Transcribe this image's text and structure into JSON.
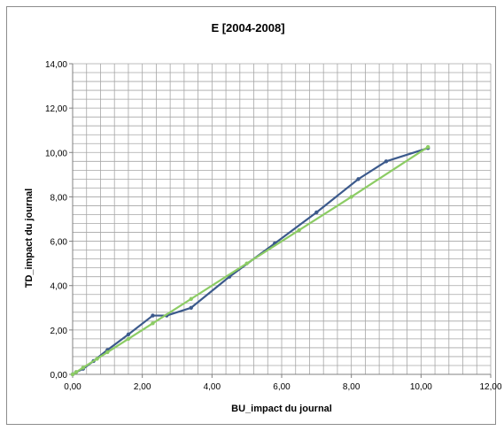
{
  "chart_data": {
    "type": "line",
    "title": "E [2004-2008]",
    "xlabel": "BU_impact du journal",
    "ylabel": "TD_impact du journal",
    "xlim": [
      0,
      12
    ],
    "ylim": [
      0,
      14
    ],
    "x_ticks": [
      "0,00",
      "2,00",
      "4,00",
      "6,00",
      "8,00",
      "10,00",
      "12,00"
    ],
    "y_ticks": [
      "0,00",
      "2,00",
      "4,00",
      "6,00",
      "8,00",
      "10,00",
      "12,00",
      "14,00"
    ],
    "minor_grid_step": 0.4,
    "grid": true,
    "legend": "none",
    "series": [
      {
        "color": "#3c5a8c",
        "marker": "circle",
        "x": [
          0,
          0.1,
          0.3,
          0.6,
          1.0,
          1.6,
          2.3,
          2.7,
          3.4,
          4.5,
          5.8,
          7.0,
          8.2,
          9.0,
          10.2
        ],
        "y": [
          0,
          0.1,
          0.25,
          0.6,
          1.1,
          1.8,
          2.65,
          2.65,
          3.0,
          4.4,
          5.9,
          7.3,
          8.8,
          9.6,
          10.2
        ]
      },
      {
        "color": "#8ccc64",
        "marker": "circle",
        "x": [
          0,
          0.1,
          0.3,
          0.7,
          1.0,
          1.6,
          2.3,
          3.4,
          5.0,
          6.5,
          8.0,
          10.2
        ],
        "y": [
          0,
          0.1,
          0.3,
          0.7,
          1.0,
          1.6,
          2.3,
          3.4,
          5.0,
          6.5,
          8.0,
          10.25
        ]
      }
    ]
  }
}
